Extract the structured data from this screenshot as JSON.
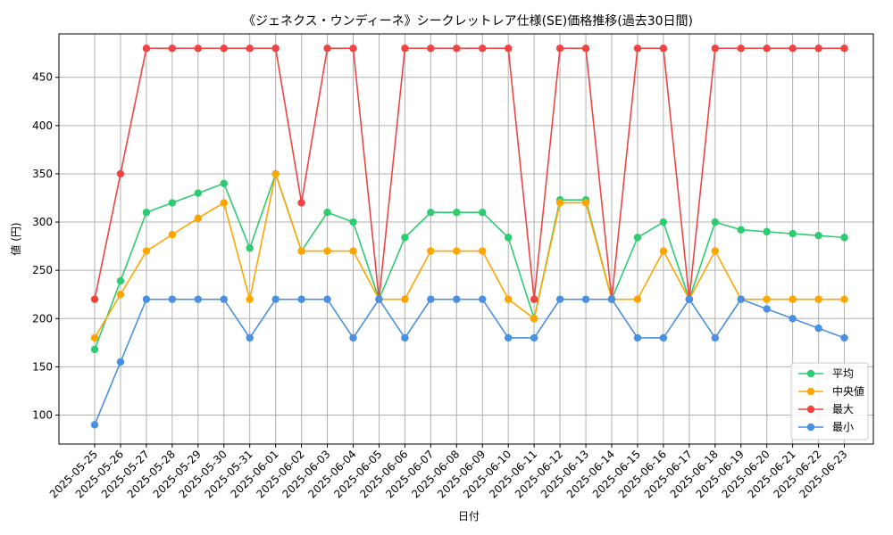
{
  "chart_data": {
    "type": "line",
    "title": "《ジェネクス・ウンディーネ》シークレットレア仕様(SE)価格推移(過去30日間)",
    "xlabel": "日付",
    "ylabel": "値 (円)",
    "ylim": [
      70,
      495
    ],
    "yticks": [
      100,
      150,
      200,
      250,
      300,
      350,
      400,
      450
    ],
    "grid": true,
    "legend_position": "bottom-right",
    "categories": [
      "2025-05-25",
      "2025-05-26",
      "2025-05-27",
      "2025-05-28",
      "2025-05-29",
      "2025-05-30",
      "2025-05-31",
      "2025-06-01",
      "2025-06-02",
      "2025-06-03",
      "2025-06-04",
      "2025-06-05",
      "2025-06-06",
      "2025-06-07",
      "2025-06-08",
      "2025-06-09",
      "2025-06-10",
      "2025-06-11",
      "2025-06-12",
      "2025-06-13",
      "2025-06-14",
      "2025-06-15",
      "2025-06-16",
      "2025-06-17",
      "2025-06-18",
      "2025-06-19",
      "2025-06-20",
      "2025-06-21",
      "2025-06-22",
      "2025-06-23"
    ],
    "series": [
      {
        "name": "平均",
        "color": "#2ecc71",
        "values": [
          168,
          239,
          310,
          320,
          330,
          340,
          273,
          350,
          270,
          310,
          300,
          220,
          284,
          310,
          310,
          310,
          284,
          200,
          323,
          323,
          220,
          284,
          300,
          220,
          300,
          292,
          290,
          288,
          286,
          284
        ]
      },
      {
        "name": "中央値",
        "color": "#ffa500",
        "values": [
          180,
          225,
          270,
          287,
          304,
          320,
          220,
          350,
          270,
          270,
          270,
          220,
          220,
          270,
          270,
          270,
          220,
          200,
          320,
          320,
          220,
          220,
          270,
          220,
          270,
          220,
          220,
          220,
          220,
          220
        ]
      },
      {
        "name": "最大",
        "color": "#ef4444",
        "values": [
          220,
          350,
          480,
          480,
          480,
          480,
          480,
          480,
          320,
          480,
          480,
          220,
          480,
          480,
          480,
          480,
          480,
          220,
          480,
          480,
          220,
          480,
          480,
          220,
          480,
          480,
          480,
          480,
          480,
          480
        ]
      },
      {
        "name": "最小",
        "color": "#4a90e2",
        "values": [
          90,
          155,
          220,
          220,
          220,
          220,
          180,
          220,
          220,
          220,
          180,
          220,
          180,
          220,
          220,
          220,
          180,
          180,
          220,
          220,
          220,
          180,
          180,
          220,
          180,
          220,
          210,
          200,
          190,
          180
        ]
      }
    ]
  }
}
